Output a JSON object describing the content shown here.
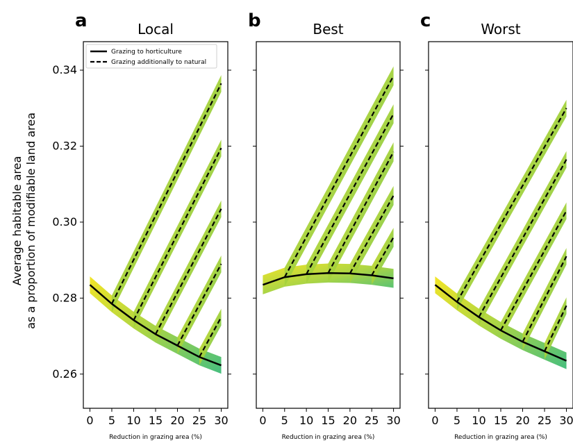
{
  "ylabel_line1": "Average habitable area",
  "ylabel_line2": "as a proportion of modifiable land area",
  "legend": {
    "solid": "Grazing to horticulture",
    "dashed": "Grazing additionally to natural"
  },
  "colors": {
    "low": "#f1e31c",
    "mid": "#a4d23c",
    "high": "#3dbb78",
    "line": "#000000"
  },
  "chart_data": [
    {
      "type": "line",
      "letter": "a",
      "title": "Local",
      "xlabel": "Reduction in grazing area (%)",
      "xlim": [
        -1.5,
        31.5
      ],
      "ylim": [
        0.251,
        0.3475
      ],
      "xticks": [
        0,
        5,
        10,
        15,
        20,
        25,
        30
      ],
      "yticks": [
        0.26,
        0.28,
        0.3,
        0.32,
        0.34
      ],
      "ytick_labels": [
        "0.26",
        "0.28",
        "0.30",
        "0.32",
        "0.34"
      ],
      "show_legend": true,
      "legend_position": "top",
      "band_halfwidth": 0.0022,
      "solid": {
        "name": "Grazing to horticulture",
        "x": [
          0,
          5,
          10,
          15,
          20,
          25,
          30
        ],
        "y": [
          0.2835,
          0.2785,
          0.2742,
          0.2705,
          0.2675,
          0.2645,
          0.2623
        ]
      },
      "dashed": [
        {
          "x": [
            5,
            30
          ],
          "y": [
            0.2785,
            0.3365
          ]
        },
        {
          "x": [
            10,
            30
          ],
          "y": [
            0.2742,
            0.3195
          ]
        },
        {
          "x": [
            15,
            30
          ],
          "y": [
            0.2705,
            0.3035
          ]
        },
        {
          "x": [
            20,
            30
          ],
          "y": [
            0.2675,
            0.289
          ]
        },
        {
          "x": [
            25,
            30
          ],
          "y": [
            0.2645,
            0.275
          ]
        }
      ]
    },
    {
      "type": "line",
      "letter": "b",
      "title": "Best",
      "xlabel": "Reduction in grazing area (%)",
      "xlim": [
        -1.5,
        31.5
      ],
      "ylim": [
        0.251,
        0.3475
      ],
      "xticks": [
        0,
        5,
        10,
        15,
        20,
        25,
        30
      ],
      "yticks": [
        0.26,
        0.28,
        0.3,
        0.32,
        0.34
      ],
      "show_legend": false,
      "band_halfwidth": 0.0025,
      "solid": {
        "name": "Grazing to horticulture",
        "x": [
          0,
          5,
          10,
          15,
          20,
          25,
          30
        ],
        "y": [
          0.2835,
          0.2855,
          0.2863,
          0.2866,
          0.2865,
          0.286,
          0.2852
        ]
      },
      "dashed": [
        {
          "x": [
            5,
            30
          ],
          "y": [
            0.2855,
            0.3385
          ]
        },
        {
          "x": [
            10,
            30
          ],
          "y": [
            0.2863,
            0.3285
          ]
        },
        {
          "x": [
            15,
            30
          ],
          "y": [
            0.2866,
            0.3185
          ]
        },
        {
          "x": [
            20,
            30
          ],
          "y": [
            0.2865,
            0.307
          ]
        },
        {
          "x": [
            25,
            30
          ],
          "y": [
            0.286,
            0.296
          ]
        }
      ]
    },
    {
      "type": "line",
      "letter": "c",
      "title": "Worst",
      "xlabel": "Reduction in grazing area (%)",
      "xlim": [
        -1.5,
        31.5
      ],
      "ylim": [
        0.251,
        0.3475
      ],
      "xticks": [
        0,
        5,
        10,
        15,
        20,
        25,
        30
      ],
      "yticks": [
        0.26,
        0.28,
        0.3,
        0.32,
        0.34
      ],
      "show_legend": false,
      "band_halfwidth": 0.0022,
      "solid": {
        "name": "Grazing to horticulture",
        "x": [
          0,
          5,
          10,
          15,
          20,
          25,
          30
        ],
        "y": [
          0.2835,
          0.279,
          0.275,
          0.2715,
          0.2685,
          0.266,
          0.2635
        ]
      },
      "dashed": [
        {
          "x": [
            5,
            30
          ],
          "y": [
            0.279,
            0.33
          ]
        },
        {
          "x": [
            10,
            30
          ],
          "y": [
            0.275,
            0.3165
          ]
        },
        {
          "x": [
            15,
            30
          ],
          "y": [
            0.2715,
            0.303
          ]
        },
        {
          "x": [
            20,
            30
          ],
          "y": [
            0.2685,
            0.291
          ]
        },
        {
          "x": [
            25,
            30
          ],
          "y": [
            0.266,
            0.278
          ]
        }
      ]
    }
  ]
}
